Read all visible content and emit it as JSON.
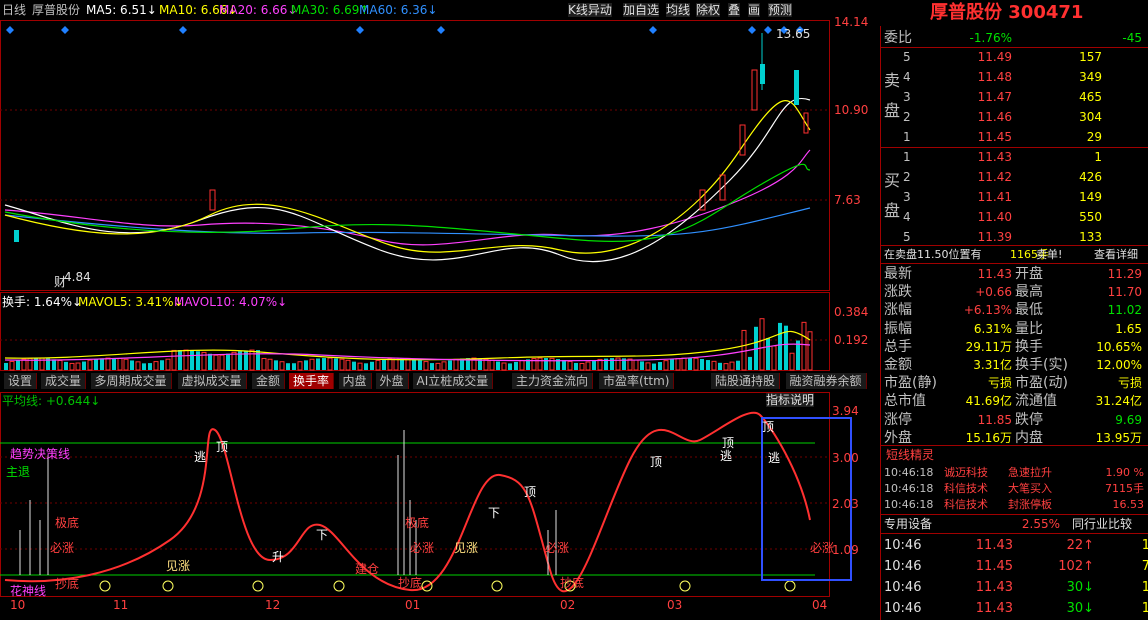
{
  "toolbar": {
    "period": "日线",
    "stock": "厚普股份",
    "ma": [
      "MA5: 6.51↓",
      "MA10: 6.66↓",
      "MA20: 6.66↓",
      "MA30: 6.69↑",
      "MA60: 6.36↓"
    ],
    "buttons": [
      "K线异动",
      "加自选",
      "均线",
      "除权",
      "叠",
      "画",
      "预测"
    ]
  },
  "price_pane": {
    "axis": [
      "14.14",
      "10.90",
      "7.63"
    ],
    "high_label": "13.65",
    "low_label": "4.84",
    "marker": "财"
  },
  "volume_pane": {
    "legend": [
      "换手: 1.64%↓",
      "MAVOL5: 3.41%↓",
      "MAVOL10: 4.07%↓"
    ],
    "axis": [
      "0.384",
      "0.192"
    ]
  },
  "tabs": [
    "设置",
    "成交量",
    "多周期成交量",
    "虚拟成交量",
    "金额",
    "换手率",
    "内盘",
    "外盘",
    "AI立桩成交量",
    "主力资金流向",
    "市盈率(ttm)",
    "陆股通持股",
    "融资融券余额"
  ],
  "indicator_pane": {
    "legend": "平均线: +0.644↓",
    "help": "指标说明",
    "axis": [
      "3.94",
      "3.00",
      "2.03",
      "1.09"
    ],
    "labels": [
      "趋势决策线",
      "主退",
      "极底",
      "必涨",
      "见涨",
      "抄底",
      "花神线",
      "逃",
      "顶",
      "升",
      "下",
      "极底",
      "必涨",
      "见涨",
      "下",
      "顶",
      "建仓",
      "抄底",
      "必涨",
      "抄底",
      "顶",
      "逃",
      "顶",
      "顶",
      "逃",
      "必涨"
    ]
  },
  "x_axis": [
    "10",
    "11",
    "12",
    "01",
    "02",
    "03",
    "04"
  ],
  "quote": {
    "title": "厚普股份 300471",
    "weibi": [
      "委比",
      "-1.76%",
      "-45"
    ],
    "sell": {
      "label": [
        "卖",
        "盘"
      ],
      "rows": [
        [
          "5",
          "11.49",
          "157"
        ],
        [
          "4",
          "11.48",
          "349"
        ],
        [
          "3",
          "11.47",
          "465"
        ],
        [
          "2",
          "11.46",
          "304"
        ],
        [
          "1",
          "11.45",
          "29"
        ]
      ]
    },
    "buy": {
      "label": [
        "买",
        "盘"
      ],
      "rows": [
        [
          "1",
          "11.43",
          "1"
        ],
        [
          "2",
          "11.42",
          "426"
        ],
        [
          "3",
          "11.41",
          "149"
        ],
        [
          "4",
          "11.40",
          "550"
        ],
        [
          "5",
          "11.39",
          "133"
        ]
      ]
    },
    "alert": [
      "在卖盘11.50位置有",
      "1165手",
      "卖单!",
      "查看详细"
    ],
    "stats": [
      [
        "最新",
        "11.43",
        "开盘",
        "11.29"
      ],
      [
        "涨跌",
        "+0.66",
        "最高",
        "11.70"
      ],
      [
        "涨幅",
        "+6.13%",
        "最低",
        "11.02"
      ],
      [
        "振幅",
        "6.31%",
        "量比",
        "1.65"
      ],
      [
        "总手",
        "29.11万",
        "换手",
        "10.65%"
      ],
      [
        "金额",
        "3.31亿",
        "换手(实)",
        "12.00%"
      ],
      [
        "市盈(静)",
        "亏损",
        "市盈(动)",
        "亏损"
      ],
      [
        "总市值",
        "41.69亿",
        "流通值",
        "31.24亿"
      ],
      [
        "涨停",
        "11.85",
        "跌停",
        "9.69"
      ],
      [
        "外盘",
        "15.16万",
        "内盘",
        "13.95万"
      ]
    ],
    "elf_title": "短线精灵",
    "elf": [
      [
        "10:46:18",
        "诚迈科技",
        "急速拉升",
        "1.90 %"
      ],
      [
        "10:46:18",
        "科信技术",
        "大笔买入",
        "7115手"
      ],
      [
        "10:46:18",
        "科信技术",
        "封涨停板",
        "16.53"
      ]
    ],
    "industry": [
      "专用设备",
      "2.55%",
      "同行业比较"
    ],
    "ticks": [
      [
        "10:46",
        "11.43",
        "22↑",
        "1"
      ],
      [
        "10:46",
        "11.45",
        "102↑",
        "7"
      ],
      [
        "10:46",
        "11.43",
        "30↓",
        "1"
      ],
      [
        "10:46",
        "11.43",
        "30↓",
        "1"
      ]
    ]
  }
}
